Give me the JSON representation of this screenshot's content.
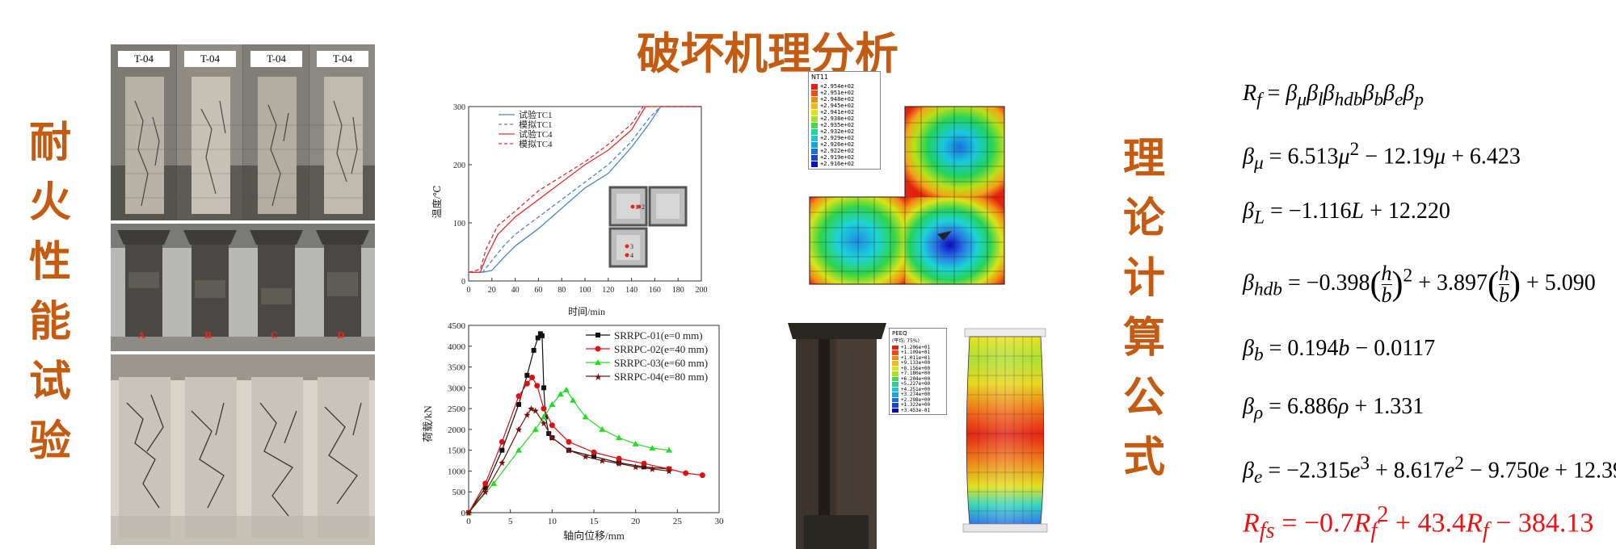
{
  "title": "破坏机理分析",
  "left_vertical": [
    "耐",
    "火",
    "性",
    "能",
    "试",
    "验"
  ],
  "right_vertical": [
    "理",
    "论",
    "计",
    "算",
    "公",
    "式"
  ],
  "photo_tags": [
    "T-04",
    "T-04",
    "T-04",
    "T-04"
  ],
  "photo_letters": [
    "A",
    "B",
    "C",
    "D"
  ],
  "fe_temp_legend": {
    "header": "NT11",
    "values": [
      "+2.954e+02",
      "+2.951e+02",
      "+2.948e+02",
      "+2.945e+02",
      "+2.941e+02",
      "+2.938e+02",
      "+2.935e+02",
      "+2.932e+02",
      "+2.929e+02",
      "+2.926e+02",
      "+2.922e+02",
      "+2.919e+02",
      "+2.916e+02"
    ]
  },
  "fe_peeq_legend": {
    "header": "PEEQ",
    "sub": "(平均: 75%)",
    "values": [
      "+1.206e+01",
      "+1.109e+01",
      "+1.011e+01",
      "+9.133e+00",
      "+8.156e+00",
      "+7.180e+00",
      "+6.204e+00",
      "+5.227e+00",
      "+4.251e+00",
      "+3.274e+00",
      "+2.298e+00",
      "+1.322e+00",
      "+3.453e-01"
    ]
  },
  "inset_points": [
    "1",
    "2",
    "3",
    "4"
  ],
  "chart_data": [
    {
      "type": "line",
      "xlabel": "时间/min",
      "ylabel": "温度/℃",
      "xlim": [
        0,
        200
      ],
      "ylim": [
        0,
        300
      ],
      "xticks": [
        "0",
        "20",
        "40",
        "60",
        "80",
        "100",
        "120",
        "140",
        "160",
        "180",
        "200"
      ],
      "yticks": [
        "0",
        "100",
        "200",
        "300"
      ],
      "legend_position": "top-left",
      "series": [
        {
          "name": "试验TC1",
          "color": "#4a86c8",
          "dash": false,
          "x": [
            0,
            12,
            20,
            30,
            40,
            60,
            80,
            100,
            120,
            140,
            155,
            165,
            180,
            200
          ],
          "y": [
            15,
            15,
            18,
            40,
            60,
            90,
            125,
            160,
            185,
            230,
            270,
            300,
            300,
            300
          ]
        },
        {
          "name": "模拟TC1",
          "color": "#4a86c8",
          "dash": true,
          "x": [
            0,
            12,
            18,
            30,
            40,
            60,
            80,
            100,
            120,
            140,
            155,
            165,
            180,
            200
          ],
          "y": [
            15,
            15,
            30,
            60,
            80,
            110,
            140,
            170,
            200,
            240,
            280,
            300,
            300,
            300
          ]
        },
        {
          "name": "试验TC4",
          "color": "#e03030",
          "dash": false,
          "x": [
            0,
            10,
            15,
            25,
            40,
            60,
            80,
            100,
            120,
            140,
            152,
            160,
            180,
            200
          ],
          "y": [
            15,
            15,
            40,
            80,
            110,
            140,
            170,
            200,
            225,
            260,
            300,
            300,
            300,
            300
          ]
        },
        {
          "name": "模拟TC4",
          "color": "#e03030",
          "dash": true,
          "x": [
            0,
            10,
            15,
            25,
            40,
            60,
            80,
            100,
            120,
            140,
            150,
            160,
            180,
            200
          ],
          "y": [
            15,
            20,
            55,
            95,
            120,
            155,
            180,
            205,
            235,
            270,
            300,
            300,
            300,
            300
          ]
        }
      ]
    },
    {
      "type": "line",
      "xlabel": "轴向位移/mm",
      "ylabel": "荷载/kN",
      "xlim": [
        0,
        30
      ],
      "ylim": [
        0,
        4500
      ],
      "xticks": [
        "0",
        "5",
        "10",
        "15",
        "20",
        "25",
        "30"
      ],
      "yticks": [
        "0",
        "500",
        "1000",
        "1500",
        "2000",
        "2500",
        "3000",
        "3500",
        "4000",
        "4500"
      ],
      "legend_position": "top-right",
      "series": [
        {
          "name": "SRRPC-01(e=0 mm)",
          "color": "#111111",
          "marker": "square",
          "x": [
            0,
            2,
            4,
            6,
            7,
            7.8,
            8.3,
            8.6,
            8.8,
            9.0,
            9.2,
            9.6,
            10,
            12,
            15,
            18,
            21,
            24
          ],
          "y": [
            0,
            600,
            1500,
            2600,
            3300,
            3900,
            4200,
            4300,
            4250,
            3000,
            2300,
            1900,
            1800,
            1500,
            1350,
            1200,
            1100,
            1050
          ]
        },
        {
          "name": "SRRPC-02(e=40 mm)",
          "color": "#e01010",
          "marker": "circle",
          "x": [
            0,
            2,
            4,
            6,
            7,
            7.6,
            8.2,
            9,
            10,
            12,
            15,
            18,
            21,
            24,
            26,
            28
          ],
          "y": [
            0,
            700,
            1700,
            2800,
            3100,
            3250,
            3050,
            2500,
            2100,
            1700,
            1450,
            1300,
            1180,
            1050,
            950,
            900
          ]
        },
        {
          "name": "SRRPC-03(e=60 mm)",
          "color": "#22dd22",
          "marker": "triangle",
          "x": [
            0,
            3,
            6,
            8,
            9,
            10,
            11,
            11.7,
            12.5,
            14,
            16,
            18,
            20,
            22,
            24
          ],
          "y": [
            0,
            700,
            1500,
            2000,
            2300,
            2600,
            2850,
            2950,
            2700,
            2300,
            2000,
            1800,
            1650,
            1550,
            1500
          ]
        },
        {
          "name": "SRRPC-04(e=80 mm)",
          "color": "#7a1010",
          "marker": "star",
          "x": [
            0,
            2,
            4,
            6,
            7,
            7.5,
            8,
            9,
            10,
            12,
            14,
            16,
            18,
            20,
            22,
            24
          ],
          "y": [
            0,
            500,
            1200,
            2000,
            2350,
            2500,
            2450,
            2150,
            1800,
            1500,
            1350,
            1250,
            1180,
            1100,
            1050,
            1000
          ]
        }
      ]
    }
  ]
}
